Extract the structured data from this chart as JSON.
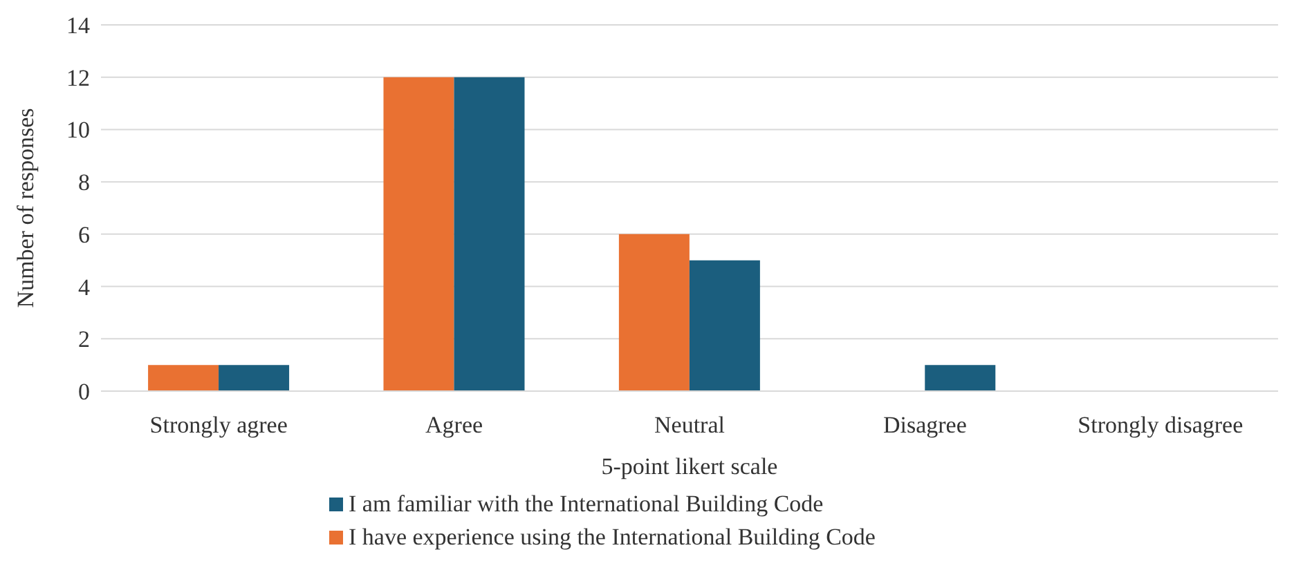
{
  "chart_data": {
    "type": "bar",
    "xlabel": "5-point likert scale",
    "ylabel": "Number of responses",
    "categories": [
      "Strongly agree",
      "Agree",
      "Neutral",
      "Disagree",
      "Strongly disagree"
    ],
    "series": [
      {
        "name": "I have experience using the International Building Code",
        "color": "#e97132",
        "values": [
          1,
          12,
          6,
          0,
          0
        ]
      },
      {
        "name": "I am familiar with the International Building Code",
        "color": "#1b5e7e",
        "values": [
          1,
          12,
          5,
          1,
          0
        ]
      }
    ],
    "ylim": [
      0,
      14
    ],
    "yticks": [
      0,
      2,
      4,
      6,
      8,
      10,
      12,
      14
    ],
    "grid": "y",
    "legend": "bottom"
  }
}
